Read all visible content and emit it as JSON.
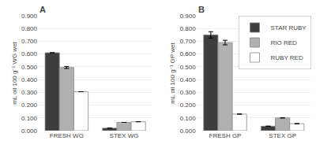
{
  "chart_data": [
    {
      "type": "bar",
      "title": "A",
      "ylabel": "mL oil 100 g⁻¹ WG wet",
      "categories": [
        "FRESH WG",
        "STEX WG"
      ],
      "series": [
        {
          "name": "STAR RUBY",
          "color": "#3d3d3d",
          "values": [
            0.61,
            0.02
          ],
          "errors": [
            0.0,
            0.0
          ]
        },
        {
          "name": "RIO RED",
          "color": "#b0b0b0",
          "values": [
            0.495,
            0.065
          ],
          "errors": [
            0.008,
            0.0
          ]
        },
        {
          "name": "RUBY RED",
          "color": "#ffffff",
          "values": [
            0.305,
            0.07
          ],
          "errors": [
            0.0,
            0.0
          ]
        }
      ],
      "ylim": [
        0.0,
        0.9
      ],
      "yticks": [
        {
          "value": 0.0,
          "label": "0.000"
        },
        {
          "value": 0.1,
          "label": "0.100"
        },
        {
          "value": 0.2,
          "label": "0.200"
        },
        {
          "value": 0.3,
          "label": "0.300"
        },
        {
          "value": 0.4,
          "label": "0.400"
        },
        {
          "value": 0.5,
          "label": "0.500"
        },
        {
          "value": 0.6,
          "label": "0.600"
        },
        {
          "value": 0.7,
          "label": "0.700"
        },
        {
          "value": 0.8,
          "label": "0.800"
        },
        {
          "value": 0.9,
          "label": "0.900"
        }
      ],
      "grid": true
    },
    {
      "type": "bar",
      "title": "B",
      "ylabel": "mL oil 100 g⁻¹ GP wet",
      "categories": [
        "FRESH GP",
        "STEX GP"
      ],
      "series": [
        {
          "name": "STAR RUBY",
          "color": "#3d3d3d",
          "values": [
            0.75,
            0.035
          ],
          "errors": [
            0.025,
            0.0
          ]
        },
        {
          "name": "RIO RED",
          "color": "#b0b0b0",
          "values": [
            0.69,
            0.1
          ],
          "errors": [
            0.018,
            0.0
          ]
        },
        {
          "name": "RUBY RED",
          "color": "#ffffff",
          "values": [
            0.13,
            0.055
          ],
          "errors": [
            0.0,
            0.0
          ]
        }
      ],
      "ylim": [
        0.0,
        0.9
      ],
      "yticks": [
        {
          "value": 0.0,
          "label": "0.000"
        },
        {
          "value": 0.1,
          "label": "0.100"
        },
        {
          "value": 0.2,
          "label": "0.200"
        },
        {
          "value": 0.3,
          "label": "0.300"
        },
        {
          "value": 0.4,
          "label": "0.400"
        },
        {
          "value": 0.5,
          "label": "0.500"
        },
        {
          "value": 0.6,
          "label": "0.600"
        },
        {
          "value": 0.7,
          "label": "0.700"
        },
        {
          "value": 0.8,
          "label": "0.800"
        },
        {
          "value": 0.9,
          "label": "0.900"
        }
      ],
      "grid": true,
      "legend": "upper right"
    }
  ]
}
